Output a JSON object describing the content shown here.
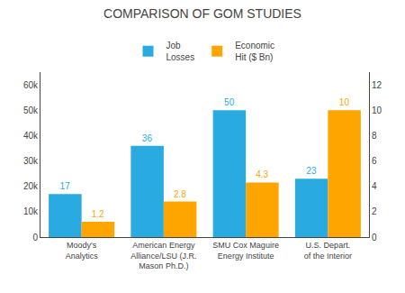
{
  "chart_data": {
    "type": "bar",
    "title": "COMPARISON OF GOM STUDIES",
    "categories": [
      "Moody's\nAnalytics",
      "American Energy\nAlliance/LSU (J.R.\nMason Ph.D.)",
      "SMU Cox Maguire\nEnergy Institute",
      "U.S. Depart.\nof the Interior"
    ],
    "series": [
      {
        "name": "Job\nLosses",
        "color": "#29ABE2",
        "values": [
          17000,
          36000,
          50000,
          23000
        ],
        "value_labels": [
          "17",
          "36",
          "50",
          "23"
        ]
      },
      {
        "name": "Economic\nHit ($ Bn)",
        "color": "#FFA500",
        "values": [
          1.2,
          2.8,
          4.3,
          10
        ],
        "axis": "y2"
      }
    ],
    "ylim": [
      0,
      65000
    ],
    "yticks": [
      0,
      {
        "value": 10000,
        "label": "10k"
      },
      {
        "value": 20000,
        "label": "20k"
      },
      {
        "value": 30000,
        "label": "30k"
      },
      {
        "value": 40000,
        "label": "40k"
      },
      {
        "value": 50000,
        "label": "50k"
      },
      {
        "value": 60000,
        "label": "60k"
      }
    ],
    "y2lim": [
      0,
      13
    ],
    "y2ticks": [
      0,
      2,
      4,
      6,
      8,
      10,
      12
    ],
    "grid": false,
    "data_labels": true,
    "legend": "top"
  }
}
